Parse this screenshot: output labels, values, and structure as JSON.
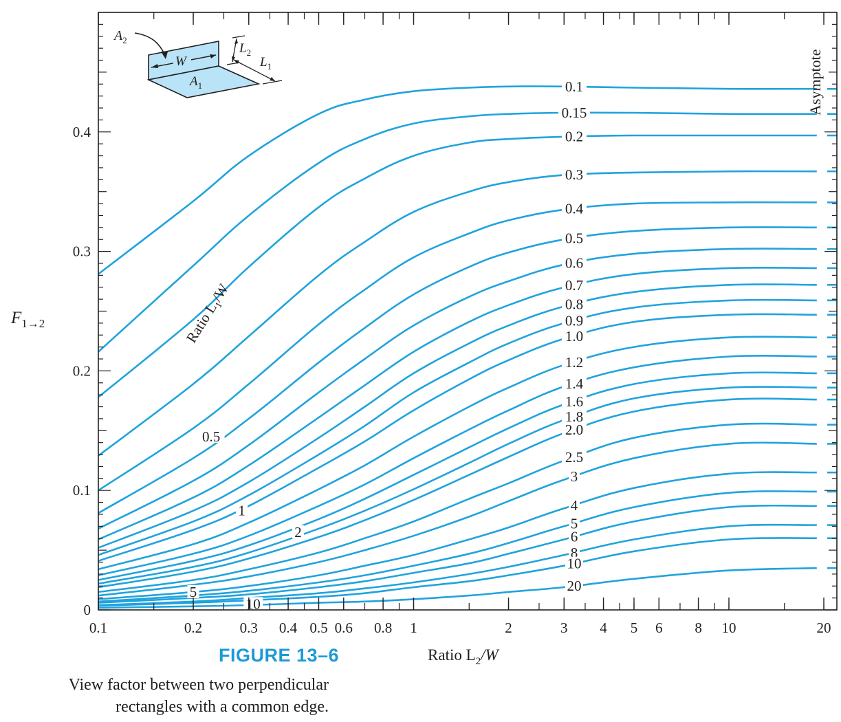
{
  "figure": {
    "label": "FIGURE 13–6",
    "caption_line1": "View factor between two perpendicular",
    "caption_line2": "rectangles with a common edge."
  },
  "colors": {
    "curve": "#20a3dd",
    "frame": "#231f20",
    "inset_fill": "#b9e3f7",
    "caption_accent": "#1c9ad6"
  },
  "inset": {
    "a2": "A",
    "a2_sub": "2",
    "a1": "A",
    "a1_sub": "1",
    "w": "W",
    "l1": "L",
    "l1_sub": "1",
    "l2": "L",
    "l2_sub": "2"
  },
  "chart_data": {
    "type": "line",
    "xscale": "log",
    "xlim": [
      0.1,
      22
    ],
    "ylim": [
      0,
      0.5
    ],
    "xlabel": "Ratio L2/W",
    "xlabel_main": "Ratio L",
    "xlabel_sub": "2",
    "xlabel_tail": "/W",
    "ylabel_main": "F",
    "ylabel_sub": "1→2",
    "x_tick_labels": [
      "0.1",
      "0.2",
      "0.3",
      "0.4",
      "0.5",
      "0.6",
      "0.8",
      "1",
      "2",
      "3",
      "4",
      "5",
      "6",
      "8",
      "10",
      "20"
    ],
    "x_tick_values": [
      0.1,
      0.2,
      0.3,
      0.4,
      0.5,
      0.6,
      0.8,
      1,
      2,
      3,
      4,
      5,
      6,
      8,
      10,
      20
    ],
    "y_tick_labels": [
      "0",
      "0.1",
      "0.2",
      "0.3",
      "0.4"
    ],
    "y_tick_values": [
      0,
      0.1,
      0.2,
      0.3,
      0.4
    ],
    "family_label_main": "Ratio L",
    "family_label_sub": "1",
    "family_label_tail": "/W",
    "asymptote_label": "Asymptote",
    "x_samples": [
      0.1,
      0.2,
      0.3,
      0.5,
      0.7,
      1,
      1.5,
      2,
      3,
      5,
      10,
      19
    ],
    "series": [
      {
        "name": "0.1",
        "values": [
          0.281,
          0.342,
          0.38,
          0.415,
          0.427,
          0.434,
          0.437,
          0.438,
          0.438,
          0.437,
          0.436,
          0.436
        ],
        "asymptote": 0.436
      },
      {
        "name": "0.15",
        "values": [
          0.216,
          0.288,
          0.33,
          0.374,
          0.394,
          0.407,
          0.413,
          0.415,
          0.416,
          0.416,
          0.415,
          0.415
        ],
        "asymptote": 0.415
      },
      {
        "name": "0.2",
        "values": [
          0.178,
          0.243,
          0.287,
          0.337,
          0.361,
          0.38,
          0.391,
          0.394,
          0.396,
          0.397,
          0.397,
          0.397
        ],
        "asymptote": 0.397
      },
      {
        "name": "0.3",
        "values": [
          0.129,
          0.189,
          0.229,
          0.28,
          0.308,
          0.333,
          0.35,
          0.358,
          0.364,
          0.366,
          0.367,
          0.367
        ],
        "asymptote": 0.367
      },
      {
        "name": "0.4",
        "values": [
          0.1,
          0.152,
          0.189,
          0.239,
          0.268,
          0.295,
          0.315,
          0.326,
          0.335,
          0.34,
          0.341,
          0.341
        ],
        "asymptote": 0.341
      },
      {
        "name": "0.5",
        "values": [
          0.081,
          0.127,
          0.16,
          0.207,
          0.236,
          0.264,
          0.287,
          0.299,
          0.31,
          0.317,
          0.32,
          0.32
        ],
        "asymptote": 0.32
      },
      {
        "name": "0.6",
        "values": [
          0.068,
          0.108,
          0.138,
          0.182,
          0.21,
          0.238,
          0.262,
          0.275,
          0.289,
          0.298,
          0.302,
          0.302
        ],
        "asymptote": 0.302
      },
      {
        "name": "0.7",
        "values": [
          0.059,
          0.094,
          0.121,
          0.161,
          0.188,
          0.216,
          0.241,
          0.255,
          0.27,
          0.281,
          0.286,
          0.286
        ],
        "asymptote": 0.286
      },
      {
        "name": "0.8",
        "values": [
          0.052,
          0.083,
          0.107,
          0.144,
          0.17,
          0.198,
          0.223,
          0.238,
          0.254,
          0.266,
          0.272,
          0.272
        ],
        "asymptote": 0.272
      },
      {
        "name": "0.9",
        "values": [
          0.046,
          0.074,
          0.096,
          0.13,
          0.154,
          0.182,
          0.207,
          0.223,
          0.24,
          0.253,
          0.259,
          0.259
        ],
        "asymptote": 0.259
      },
      {
        "name": "1.0",
        "values": [
          0.041,
          0.067,
          0.087,
          0.119,
          0.141,
          0.167,
          0.193,
          0.209,
          0.227,
          0.241,
          0.247,
          0.247
        ],
        "asymptote": 0.247
      },
      {
        "name": "1.2",
        "values": [
          0.034,
          0.055,
          0.073,
          0.101,
          0.121,
          0.145,
          0.17,
          0.186,
          0.205,
          0.22,
          0.228,
          0.228
        ],
        "asymptote": 0.228
      },
      {
        "name": "1.4",
        "values": [
          0.029,
          0.047,
          0.062,
          0.087,
          0.105,
          0.127,
          0.151,
          0.167,
          0.187,
          0.203,
          0.212,
          0.212
        ],
        "asymptote": 0.212
      },
      {
        "name": "1.6",
        "values": [
          0.025,
          0.041,
          0.054,
          0.076,
          0.093,
          0.113,
          0.136,
          0.152,
          0.172,
          0.189,
          0.198,
          0.198
        ],
        "asymptote": 0.198
      },
      {
        "name": "1.8",
        "values": [
          0.022,
          0.036,
          0.048,
          0.068,
          0.083,
          0.101,
          0.123,
          0.139,
          0.159,
          0.177,
          0.186,
          0.186
        ],
        "asymptote": 0.186
      },
      {
        "name": "2.0",
        "values": [
          0.019,
          0.032,
          0.043,
          0.061,
          0.075,
          0.092,
          0.113,
          0.128,
          0.148,
          0.166,
          0.176,
          0.176
        ],
        "asymptote": 0.176
      },
      {
        "name": "2.5",
        "values": [
          0.015,
          0.025,
          0.034,
          0.048,
          0.06,
          0.074,
          0.093,
          0.106,
          0.125,
          0.144,
          0.155,
          0.155
        ],
        "asymptote": 0.155
      },
      {
        "name": "3",
        "values": [
          0.012,
          0.021,
          0.028,
          0.04,
          0.05,
          0.062,
          0.078,
          0.091,
          0.109,
          0.127,
          0.139,
          0.139
        ],
        "asymptote": 0.139
      },
      {
        "name": "4",
        "values": [
          0.009,
          0.015,
          0.02,
          0.029,
          0.037,
          0.046,
          0.059,
          0.069,
          0.085,
          0.102,
          0.114,
          0.115
        ],
        "asymptote": 0.115
      },
      {
        "name": "5",
        "values": [
          0.007,
          0.012,
          0.016,
          0.023,
          0.029,
          0.037,
          0.047,
          0.056,
          0.07,
          0.086,
          0.098,
          0.099
        ],
        "asymptote": 0.099
      },
      {
        "name": "6",
        "values": [
          0.006,
          0.01,
          0.013,
          0.019,
          0.024,
          0.031,
          0.039,
          0.047,
          0.059,
          0.074,
          0.086,
          0.087
        ],
        "asymptote": 0.087
      },
      {
        "name": "8",
        "values": [
          0.004,
          0.007,
          0.01,
          0.014,
          0.018,
          0.023,
          0.03,
          0.036,
          0.046,
          0.059,
          0.07,
          0.071
        ],
        "asymptote": 0.071
      },
      {
        "name": "10",
        "values": [
          0.0035,
          0.006,
          0.008,
          0.011,
          0.014,
          0.019,
          0.024,
          0.029,
          0.037,
          0.049,
          0.059,
          0.06
        ],
        "asymptote": 0.06
      },
      {
        "name": "20",
        "values": [
          0.0018,
          0.003,
          0.004,
          0.006,
          0.007,
          0.009,
          0.012,
          0.015,
          0.019,
          0.026,
          0.033,
          0.035
        ],
        "asymptote": 0.035
      }
    ],
    "inline_labels": [
      {
        "text": "0.5",
        "x": 0.228,
        "y": 0.145
      },
      {
        "text": "1",
        "x": 0.285,
        "y": 0.083
      },
      {
        "text": "2",
        "x": 0.43,
        "y": 0.065
      },
      {
        "text": "5",
        "x": 0.2,
        "y": 0.015
      },
      {
        "text": "10",
        "x": 0.31,
        "y": 0.005
      }
    ]
  }
}
